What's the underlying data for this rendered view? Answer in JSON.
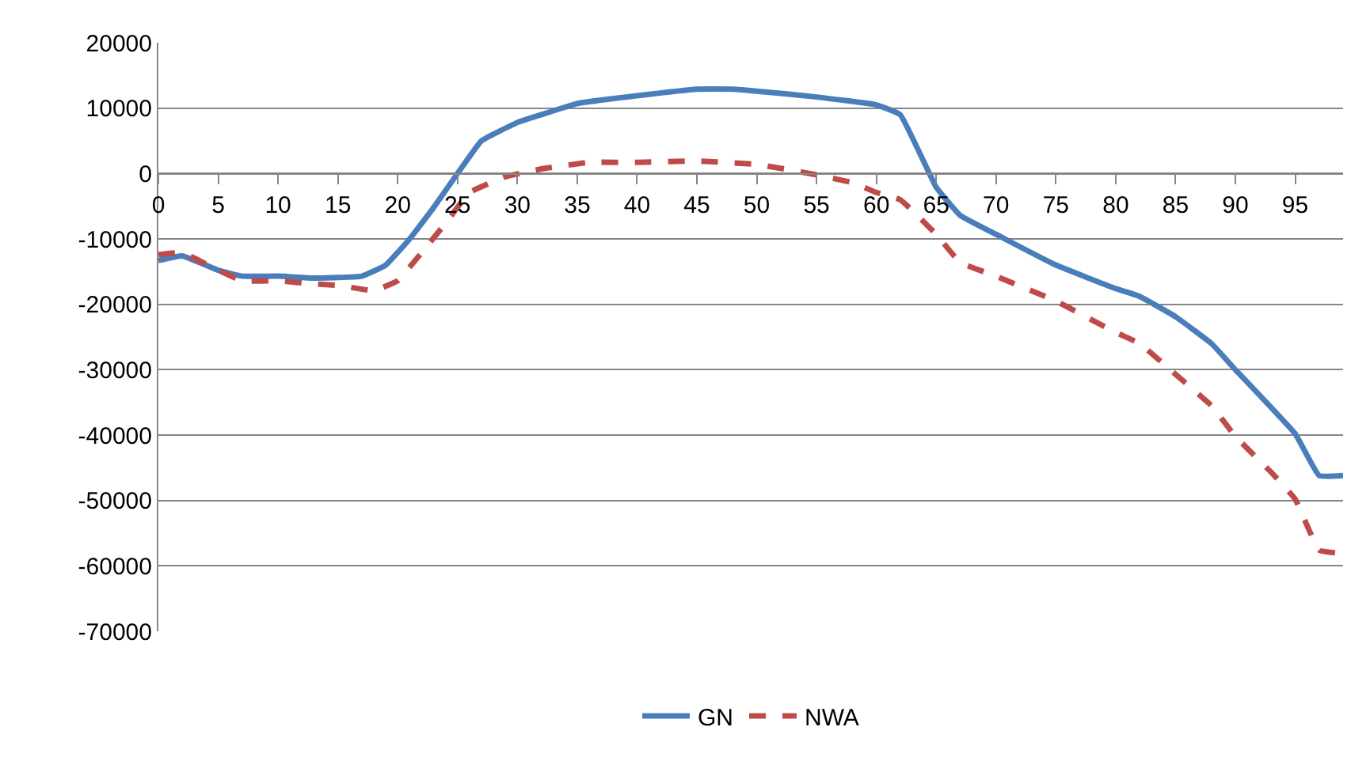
{
  "chart_data": {
    "type": "line",
    "xlim": [
      0,
      99
    ],
    "xticks": [
      0,
      5,
      10,
      15,
      20,
      25,
      30,
      35,
      40,
      45,
      50,
      55,
      60,
      65,
      70,
      75,
      80,
      85,
      90,
      95
    ],
    "ylim": [
      -70000,
      20000
    ],
    "yticks": [
      -70000,
      -60000,
      -50000,
      -40000,
      -30000,
      -20000,
      -10000,
      0,
      10000,
      20000
    ],
    "grid": "y",
    "legend": "bottom",
    "series": [
      {
        "name": "GN",
        "color": "#4a7ebb",
        "line_style": "solid",
        "x": [
          0,
          2,
          5,
          7,
          10,
          13,
          17,
          19,
          21,
          23,
          25,
          27,
          30,
          32,
          35,
          40,
          45,
          48,
          50,
          55,
          60,
          62,
          65,
          67,
          70,
          75,
          80,
          82,
          85,
          88,
          90,
          95,
          97,
          99
        ],
        "values": [
          -13300,
          -12600,
          -14800,
          -15700,
          -15700,
          -16000,
          -15700,
          -14000,
          -10000,
          -5200,
          0,
          5000,
          7800,
          9000,
          10700,
          11900,
          12900,
          12900,
          12600,
          11700,
          10500,
          9000,
          -2100,
          -6400,
          -9300,
          -14000,
          -17600,
          -18800,
          -21900,
          -26000,
          -30000,
          -39800,
          -46200,
          -46200
        ]
      },
      {
        "name": "NWA",
        "color": "#be4b48",
        "line_style": "dashed",
        "x": [
          0,
          2,
          5,
          7,
          10,
          13,
          15,
          18,
          20,
          22,
          24,
          26,
          29,
          32,
          36,
          40,
          45,
          50,
          55,
          58,
          60,
          62,
          65,
          67,
          70,
          75,
          80,
          82,
          85,
          88,
          90,
          93,
          95,
          97,
          99
        ],
        "values": [
          -12400,
          -12100,
          -14800,
          -16400,
          -16400,
          -16900,
          -17100,
          -17900,
          -16400,
          -12100,
          -7600,
          -2900,
          -500,
          700,
          1700,
          1700,
          1900,
          1400,
          -200,
          -1400,
          -2900,
          -4000,
          -9300,
          -13600,
          -15700,
          -19500,
          -24300,
          -26000,
          -30700,
          -35500,
          -40200,
          -45700,
          -49800,
          -57600,
          -58100
        ]
      }
    ]
  }
}
